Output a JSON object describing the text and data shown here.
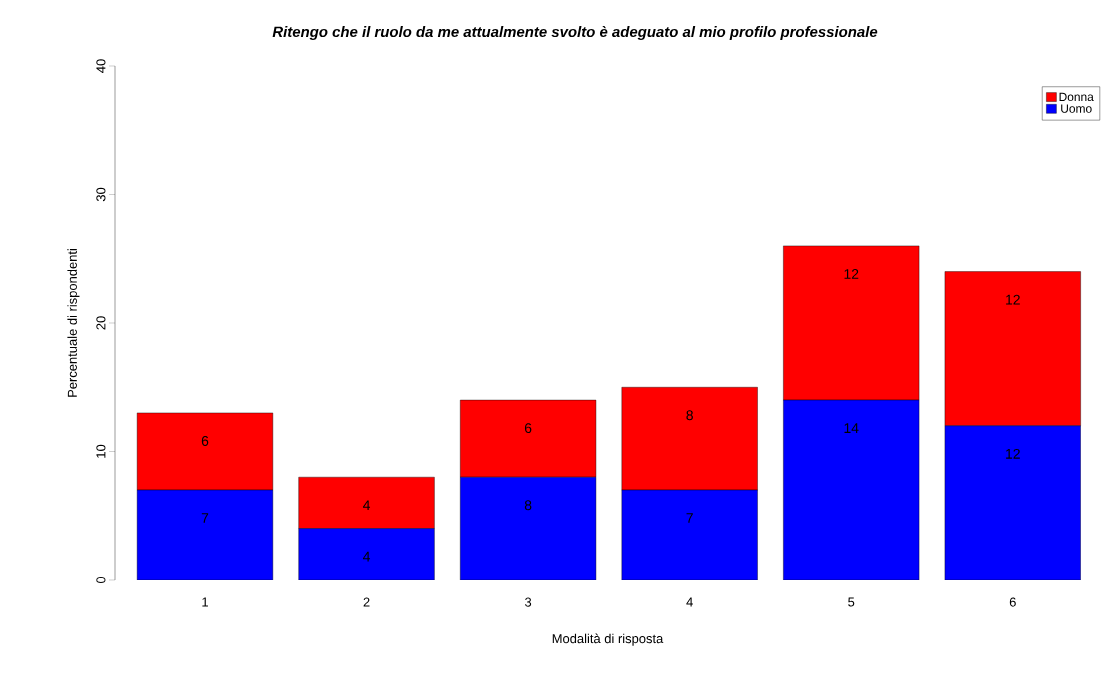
{
  "chart_data": {
    "type": "bar",
    "title": "Ritengo che il ruolo da me attualmente svolto è adeguato al mio profilo professionale",
    "xlabel": "Modalità di risposta",
    "ylabel": "Percentuale di rispondenti",
    "categories": [
      "1",
      "2",
      "3",
      "4",
      "5",
      "6"
    ],
    "series": [
      {
        "name": "Uomo",
        "color": "#0000ff",
        "values": [
          7,
          4,
          8,
          7,
          14,
          12
        ]
      },
      {
        "name": "Donna",
        "color": "#ff0000",
        "values": [
          6,
          4,
          6,
          8,
          12,
          12
        ]
      }
    ],
    "stacked": true,
    "data_labels": true,
    "ylim": [
      0,
      40
    ],
    "yticks": [
      0,
      10,
      20,
      30,
      40
    ],
    "legend": "top right",
    "grid": false
  }
}
